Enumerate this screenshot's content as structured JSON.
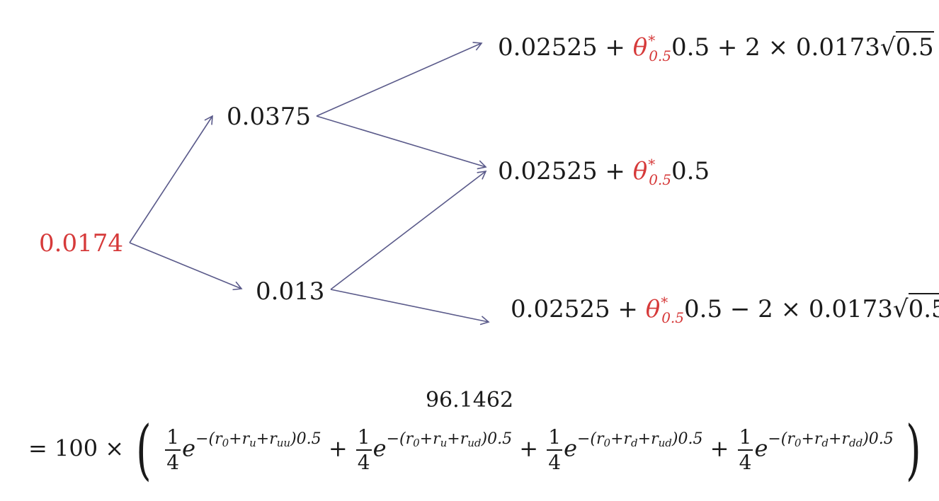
{
  "root": "0.0174",
  "level1": {
    "up": "0.0375",
    "down": "0.013"
  },
  "level2": {
    "uu": {
      "a": "0.02525 + ",
      "theta": "θ",
      "theta_sup": "*",
      "theta_sub": "0.5",
      "b": "0.5 + 2 × 0.0173",
      "sqrt": "0.5"
    },
    "ud": {
      "a": "0.02525 + ",
      "theta": "θ",
      "theta_sup": "*",
      "theta_sub": "0.5",
      "b": "0.5"
    },
    "dd": {
      "a": "0.02525 + ",
      "theta": "θ",
      "theta_sup": "*",
      "theta_sub": "0.5",
      "b": "0.5 − 2 × 0.0173",
      "sqrt": "0.5"
    }
  },
  "price": "96.1462",
  "equation": {
    "lead": "= 100 ×",
    "frac_num": "1",
    "frac_den": "4",
    "e": "e",
    "terms": [
      {
        "exp": "−(r",
        "s0": "0",
        "p1": "+r",
        "s1": "u",
        "p2": "+r",
        "s2": "uu",
        "tail": ")0.5"
      },
      {
        "exp": "−(r",
        "s0": "0",
        "p1": "+r",
        "s1": "u",
        "p2": "+r",
        "s2": "ud",
        "tail": ")0.5"
      },
      {
        "exp": "−(r",
        "s0": "0",
        "p1": "+r",
        "s1": "d",
        "p2": "+r",
        "s2": "ud",
        "tail": ")0.5"
      },
      {
        "exp": "−(r",
        "s0": "0",
        "p1": "+r",
        "s1": "d",
        "p2": "+r",
        "s2": "dd",
        "tail": ")0.5"
      }
    ],
    "plus": "+",
    "lparen": "(",
    "rparen": ")"
  },
  "colors": {
    "highlight": "#d63a3a",
    "arrow": "#5a5a8a"
  }
}
